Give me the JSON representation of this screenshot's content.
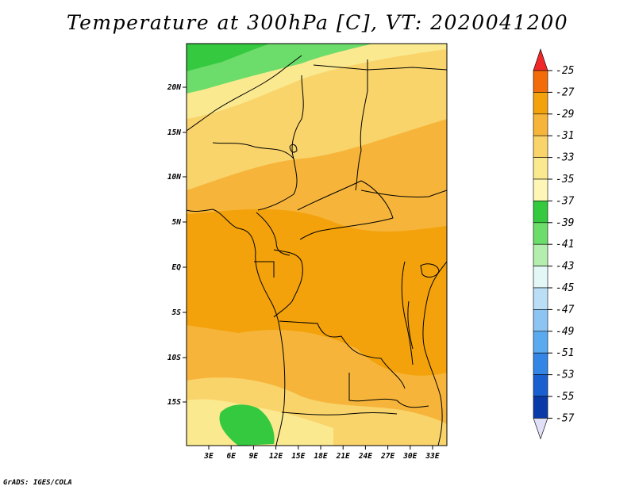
{
  "title": "Temperature at 300hPa [C], VT: 2020041200",
  "credit": "GrADS: IGES/COLA",
  "map": {
    "lat_labels": [
      "20N",
      "15N",
      "10N",
      "5N",
      "EQ",
      "5S",
      "10S",
      "15S"
    ],
    "lon_labels": [
      "3E",
      "6E",
      "9E",
      "12E",
      "15E",
      "18E",
      "21E",
      "24E",
      "27E",
      "30E",
      "33E"
    ]
  },
  "colorbar": {
    "labels": [
      "-25",
      "-27",
      "-29",
      "-31",
      "-33",
      "-35",
      "-37",
      "-39",
      "-41",
      "-43",
      "-45",
      "-47",
      "-49",
      "-51",
      "-53",
      "-55",
      "-57"
    ],
    "colors": {
      "arrow_top": "#f0282a",
      "segments": [
        "#f26d0a",
        "#f3a20b",
        "#f6b53a",
        "#f9d46b",
        "#fbe98f",
        "#fdf6b7",
        "#34c93f",
        "#6cdc6a",
        "#b4eeae",
        "#e2f7f6",
        "#b9def6",
        "#8cc5f3",
        "#5aaaf0",
        "#3486e6",
        "#1a5fcf",
        "#0a39a8"
      ],
      "arrow_bottom_fill": "#e0e0f8"
    }
  },
  "field_colors": {
    "t_minus_29": "#f3a20b",
    "t_minus_31": "#f6b53a",
    "t_minus_33": "#f9d46b",
    "t_minus_35": "#fbe98f",
    "t_minus_37": "#34c93f",
    "t_minus_39": "#6cdc6a"
  }
}
